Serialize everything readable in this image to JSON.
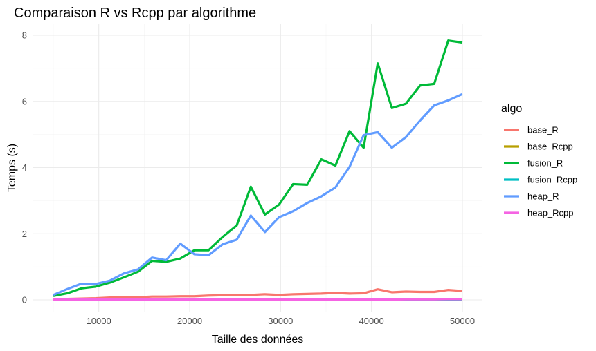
{
  "chart_data": {
    "type": "line",
    "title": "Comparaison R vs Rcpp par algorithme",
    "xlabel": "Taille des données",
    "ylabel": "Temps (s)",
    "xlim": [
      5000,
      50000
    ],
    "ylim": [
      0,
      8
    ],
    "x_ticks": [
      10000,
      20000,
      30000,
      40000,
      50000
    ],
    "x_tick_labels": [
      "10000",
      "20000",
      "30000",
      "40000",
      "50000"
    ],
    "y_ticks": [
      0,
      2,
      4,
      6,
      8
    ],
    "y_tick_labels": [
      "0",
      "2",
      "4",
      "6",
      "8"
    ],
    "grid": true,
    "legend": {
      "title": "algo",
      "placement": "right"
    },
    "x": [
      5000,
      6552,
      8103,
      9655,
      11207,
      12759,
      14310,
      15862,
      17414,
      18966,
      20517,
      22069,
      23621,
      25172,
      26724,
      28276,
      29828,
      31379,
      32931,
      34483,
      36034,
      37586,
      39138,
      40690,
      42241,
      43793,
      45345,
      46897,
      48448,
      50000
    ],
    "series": [
      {
        "name": "base_R",
        "color": "#F8766D",
        "values": [
          0.02,
          0.03,
          0.04,
          0.05,
          0.07,
          0.07,
          0.08,
          0.1,
          0.1,
          0.11,
          0.11,
          0.13,
          0.14,
          0.14,
          0.15,
          0.17,
          0.15,
          0.17,
          0.18,
          0.19,
          0.21,
          0.19,
          0.2,
          0.32,
          0.23,
          0.25,
          0.24,
          0.24,
          0.3,
          0.27
        ]
      },
      {
        "name": "base_Rcpp",
        "color": "#B79F00",
        "values": [
          0.005,
          0.005,
          0.005,
          0.005,
          0.005,
          0.005,
          0.005,
          0.005,
          0.005,
          0.005,
          0.005,
          0.005,
          0.005,
          0.005,
          0.005,
          0.005,
          0.005,
          0.005,
          0.005,
          0.005,
          0.005,
          0.005,
          0.005,
          0.005,
          0.005,
          0.005,
          0.005,
          0.005,
          0.005,
          0.005
        ]
      },
      {
        "name": "fusion_R",
        "color": "#00BA38",
        "values": [
          0.12,
          0.2,
          0.35,
          0.4,
          0.52,
          0.68,
          0.85,
          1.18,
          1.15,
          1.25,
          1.5,
          1.5,
          1.9,
          2.25,
          3.42,
          2.58,
          2.88,
          3.5,
          3.48,
          4.25,
          4.06,
          5.1,
          4.6,
          7.15,
          5.8,
          5.93,
          6.48,
          6.53,
          7.84,
          7.78
        ]
      },
      {
        "name": "fusion_Rcpp",
        "color": "#00BFC4",
        "values": [
          0.01,
          0.01,
          0.01,
          0.01,
          0.01,
          0.01,
          0.01,
          0.01,
          0.01,
          0.01,
          0.01,
          0.01,
          0.01,
          0.01,
          0.01,
          0.01,
          0.01,
          0.01,
          0.01,
          0.01,
          0.01,
          0.01,
          0.01,
          0.01,
          0.01,
          0.01,
          0.01,
          0.01,
          0.01,
          0.01
        ]
      },
      {
        "name": "heap_R",
        "color": "#619CFF",
        "values": [
          0.15,
          0.33,
          0.49,
          0.48,
          0.58,
          0.8,
          0.92,
          1.28,
          1.2,
          1.7,
          1.38,
          1.35,
          1.68,
          1.82,
          2.55,
          2.05,
          2.5,
          2.68,
          2.93,
          3.13,
          3.4,
          4.02,
          4.98,
          5.07,
          4.6,
          4.92,
          5.42,
          5.88,
          6.03,
          6.22
        ]
      },
      {
        "name": "heap_Rcpp",
        "color": "#F564E3",
        "values": [
          0.01,
          0.01,
          0.01,
          0.01,
          0.01,
          0.01,
          0.01,
          0.01,
          0.01,
          0.01,
          0.01,
          0.01,
          0.01,
          0.01,
          0.01,
          0.01,
          0.01,
          0.01,
          0.01,
          0.01,
          0.01,
          0.01,
          0.01,
          0.01,
          0.01,
          0.015,
          0.015,
          0.015,
          0.02,
          0.02
        ]
      }
    ]
  }
}
